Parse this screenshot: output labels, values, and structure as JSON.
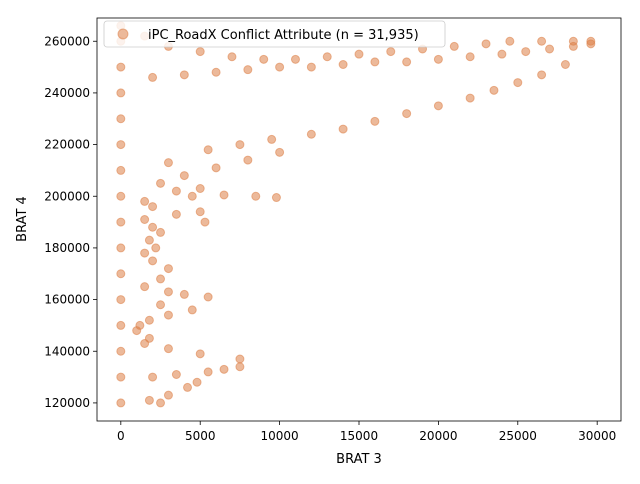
{
  "chart_data": {
    "type": "scatter",
    "title": "",
    "xlabel": "BRAT 3",
    "ylabel": "BRAT 4",
    "xlim": [
      -1500,
      31500
    ],
    "ylim": [
      113000,
      269000
    ],
    "x_ticks": [
      0,
      5000,
      10000,
      15000,
      20000,
      25000,
      30000
    ],
    "y_ticks": [
      120000,
      140000,
      160000,
      180000,
      200000,
      220000,
      240000,
      260000
    ],
    "x_tick_labels": [
      "0",
      "5000",
      "10000",
      "15000",
      "20000",
      "25000",
      "30000"
    ],
    "y_tick_labels": [
      "120000",
      "140000",
      "160000",
      "180000",
      "200000",
      "220000",
      "240000",
      "260000"
    ],
    "grid": false,
    "legend_position": "upper-left",
    "series": [
      {
        "name": "iPC_RoadX Conflict Attribute (n = 31,935)",
        "color": "#dd8047",
        "alpha": 0.55,
        "point_count": 31935,
        "region_points": [
          [
            0,
            120000
          ],
          [
            0,
            130000
          ],
          [
            0,
            140000
          ],
          [
            0,
            150000
          ],
          [
            0,
            160000
          ],
          [
            0,
            170000
          ],
          [
            0,
            180000
          ],
          [
            0,
            190000
          ],
          [
            0,
            200000
          ],
          [
            0,
            210000
          ],
          [
            0,
            220000
          ],
          [
            0,
            230000
          ],
          [
            0,
            240000
          ],
          [
            0,
            250000
          ],
          [
            0,
            260000
          ],
          [
            0,
            266000
          ],
          [
            1800,
            121000
          ],
          [
            2500,
            120000
          ],
          [
            3000,
            123000
          ],
          [
            4200,
            126000
          ],
          [
            4800,
            128000
          ],
          [
            2000,
            130000
          ],
          [
            3500,
            131000
          ],
          [
            5500,
            132000
          ],
          [
            6500,
            133000
          ],
          [
            7500,
            134000
          ],
          [
            7500,
            137000
          ],
          [
            5000,
            139000
          ],
          [
            3000,
            141000
          ],
          [
            1500,
            143000
          ],
          [
            1800,
            145000
          ],
          [
            1000,
            148000
          ],
          [
            1200,
            150000
          ],
          [
            1800,
            152000
          ],
          [
            3000,
            154000
          ],
          [
            4500,
            156000
          ],
          [
            5500,
            161000
          ],
          [
            2500,
            158000
          ],
          [
            4000,
            162000
          ],
          [
            3000,
            163000
          ],
          [
            1500,
            165000
          ],
          [
            2500,
            168000
          ],
          [
            3000,
            172000
          ],
          [
            2000,
            175000
          ],
          [
            1500,
            178000
          ],
          [
            2200,
            180000
          ],
          [
            1800,
            183000
          ],
          [
            2500,
            186000
          ],
          [
            2000,
            188000
          ],
          [
            1500,
            191000
          ],
          [
            3500,
            193000
          ],
          [
            5000,
            194000
          ],
          [
            5300,
            190000
          ],
          [
            2000,
            196000
          ],
          [
            1500,
            198000
          ],
          [
            4500,
            200000
          ],
          [
            6500,
            200500
          ],
          [
            8500,
            200000
          ],
          [
            9800,
            199500
          ],
          [
            3500,
            202000
          ],
          [
            5000,
            203000
          ],
          [
            2500,
            205000
          ],
          [
            4000,
            208000
          ],
          [
            6000,
            211000
          ],
          [
            8000,
            214000
          ],
          [
            10000,
            217000
          ],
          [
            3000,
            213000
          ],
          [
            5500,
            218000
          ],
          [
            7500,
            220000
          ],
          [
            9500,
            222000
          ],
          [
            12000,
            224000
          ],
          [
            14000,
            226000
          ],
          [
            16000,
            229000
          ],
          [
            18000,
            232000
          ],
          [
            20000,
            235000
          ],
          [
            22000,
            238000
          ],
          [
            23500,
            241000
          ],
          [
            25000,
            244000
          ],
          [
            26500,
            247000
          ],
          [
            28000,
            251000
          ],
          [
            29600,
            259000
          ],
          [
            28500,
            258000
          ],
          [
            27000,
            257000
          ],
          [
            25500,
            256000
          ],
          [
            24000,
            255000
          ],
          [
            22000,
            254000
          ],
          [
            20000,
            253000
          ],
          [
            18000,
            252000
          ],
          [
            16000,
            252000
          ],
          [
            14000,
            251000
          ],
          [
            12000,
            250000
          ],
          [
            10000,
            250000
          ],
          [
            8000,
            249000
          ],
          [
            6000,
            248000
          ],
          [
            4000,
            247000
          ],
          [
            2000,
            246000
          ],
          [
            1500,
            262000
          ],
          [
            3000,
            258000
          ],
          [
            5000,
            256000
          ],
          [
            7000,
            254000
          ],
          [
            9000,
            253000
          ],
          [
            11000,
            253000
          ],
          [
            13000,
            254000
          ],
          [
            15000,
            255000
          ],
          [
            17000,
            256000
          ],
          [
            19000,
            257000
          ],
          [
            21000,
            258000
          ],
          [
            23000,
            259000
          ],
          [
            24500,
            260000
          ],
          [
            26500,
            260000
          ],
          [
            28500,
            260000
          ],
          [
            29600,
            260000
          ]
        ]
      }
    ]
  }
}
